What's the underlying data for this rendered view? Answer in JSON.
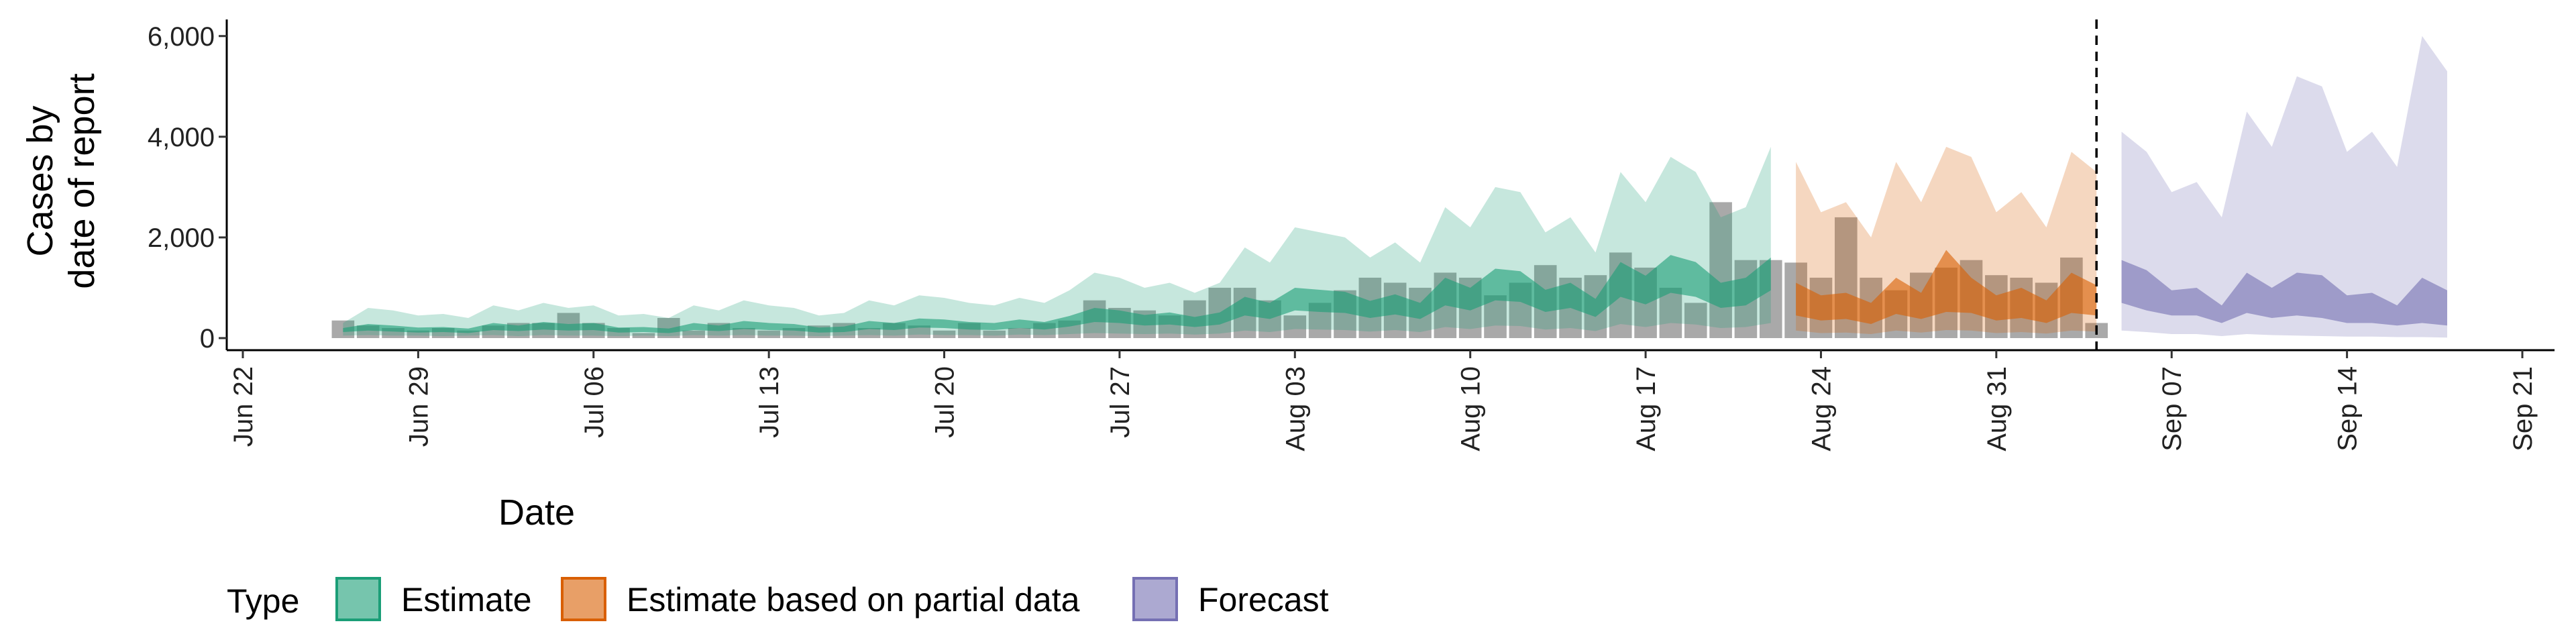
{
  "chart_data": {
    "type": "band",
    "x_label": "Date",
    "y_label": [
      "Cases by",
      "date of report"
    ],
    "legend_title": "Type",
    "xlim": [
      "Jun 22",
      "Sep 21"
    ],
    "xticks": [
      "Jun 22",
      "Jun 29",
      "Jul 06",
      "Jul 13",
      "Jul 20",
      "Jul 27",
      "Aug 03",
      "Aug 10",
      "Aug 17",
      "Aug 24",
      "Aug 31",
      "Sep 07",
      "Sep 14",
      "Sep 21"
    ],
    "ylim": [
      -240,
      6330
    ],
    "yticks": [
      0,
      {
        "value": 2000,
        "label": "2,000"
      },
      {
        "value": 4000,
        "label": "4,000"
      },
      {
        "value": 6000,
        "label": "6,000"
      }
    ],
    "vline": "Sep 04",
    "reported": {
      "color": "#8c8c8c",
      "x": [
        "Jun 26",
        "Jun 27",
        "Jun 28",
        "Jun 29",
        "Jun 30",
        "Jul 01",
        "Jul 02",
        "Jul 03",
        "Jul 04",
        "Jul 05",
        "Jul 06",
        "Jul 07",
        "Jul 08",
        "Jul 09",
        "Jul 10",
        "Jul 11",
        "Jul 12",
        "Jul 13",
        "Jul 14",
        "Jul 15",
        "Jul 16",
        "Jul 17",
        "Jul 18",
        "Jul 19",
        "Jul 20",
        "Jul 21",
        "Jul 22",
        "Jul 23",
        "Jul 24",
        "Jul 25",
        "Jul 26",
        "Jul 27",
        "Jul 28",
        "Jul 29",
        "Jul 30",
        "Jul 31",
        "Aug 01",
        "Aug 02",
        "Aug 03",
        "Aug 04",
        "Aug 05",
        "Aug 06",
        "Aug 07",
        "Aug 08",
        "Aug 09",
        "Aug 10",
        "Aug 11",
        "Aug 12",
        "Aug 13",
        "Aug 14",
        "Aug 15",
        "Aug 16",
        "Aug 17",
        "Aug 18",
        "Aug 19",
        "Aug 20",
        "Aug 21",
        "Aug 22",
        "Aug 23",
        "Aug 24",
        "Aug 25",
        "Aug 26",
        "Aug 27",
        "Aug 28",
        "Aug 29",
        "Aug 30",
        "Aug 31",
        "Sep 01",
        "Sep 02",
        "Sep 03",
        "Sep 04"
      ],
      "values": [
        350,
        250,
        200,
        150,
        200,
        150,
        250,
        300,
        300,
        500,
        300,
        200,
        100,
        400,
        150,
        300,
        200,
        150,
        200,
        250,
        300,
        200,
        300,
        250,
        150,
        300,
        150,
        200,
        300,
        350,
        750,
        600,
        550,
        450,
        750,
        1000,
        1000,
        750,
        450,
        700,
        950,
        1200,
        1100,
        1000,
        1300,
        1200,
        850,
        1100,
        1450,
        1200,
        1250,
        1700,
        1400,
        1000,
        700,
        2700,
        1550,
        1550,
        1500,
        1200,
        2400,
        1200,
        950,
        1300,
        1400,
        1550,
        1250,
        1200,
        1100,
        1600,
        300
      ]
    },
    "series": [
      {
        "name": "Estimate",
        "color": "#1b9e77",
        "x": [
          "Jun 26",
          "Jun 27",
          "Jun 28",
          "Jun 29",
          "Jun 30",
          "Jul 01",
          "Jul 02",
          "Jul 03",
          "Jul 04",
          "Jul 05",
          "Jul 06",
          "Jul 07",
          "Jul 08",
          "Jul 09",
          "Jul 10",
          "Jul 11",
          "Jul 12",
          "Jul 13",
          "Jul 14",
          "Jul 15",
          "Jul 16",
          "Jul 17",
          "Jul 18",
          "Jul 19",
          "Jul 20",
          "Jul 21",
          "Jul 22",
          "Jul 23",
          "Jul 24",
          "Jul 25",
          "Jul 26",
          "Jul 27",
          "Jul 28",
          "Jul 29",
          "Jul 30",
          "Jul 31",
          "Aug 01",
          "Aug 02",
          "Aug 03",
          "Aug 04",
          "Aug 05",
          "Aug 06",
          "Aug 07",
          "Aug 08",
          "Aug 09",
          "Aug 10",
          "Aug 11",
          "Aug 12",
          "Aug 13",
          "Aug 14",
          "Aug 15",
          "Aug 16",
          "Aug 17",
          "Aug 18",
          "Aug 19",
          "Aug 20",
          "Aug 21",
          "Aug 22"
        ],
        "lower_90": [
          50,
          60,
          50,
          50,
          40,
          50,
          60,
          40,
          60,
          50,
          50,
          40,
          50,
          40,
          60,
          50,
          60,
          50,
          50,
          40,
          50,
          60,
          50,
          70,
          60,
          60,
          50,
          70,
          60,
          80,
          100,
          90,
          80,
          90,
          70,
          90,
          150,
          120,
          180,
          170,
          160,
          130,
          160,
          120,
          220,
          180,
          250,
          240,
          170,
          200,
          140,
          280,
          220,
          300,
          270,
          200,
          220,
          300
        ],
        "upper_90": [
          300,
          600,
          550,
          450,
          480,
          400,
          650,
          550,
          700,
          600,
          650,
          450,
          480,
          400,
          650,
          550,
          750,
          650,
          600,
          450,
          500,
          750,
          650,
          850,
          800,
          700,
          650,
          800,
          700,
          950,
          1300,
          1200,
          1000,
          1100,
          900,
          1100,
          1800,
          1500,
          2200,
          2100,
          2000,
          1600,
          1900,
          1500,
          2600,
          2200,
          3000,
          2900,
          2100,
          2400,
          1700,
          3300,
          2700,
          3600,
          3300,
          2400,
          2600,
          3800
        ],
        "lower_50": [
          120,
          150,
          130,
          110,
          120,
          100,
          160,
          140,
          170,
          150,
          160,
          110,
          120,
          100,
          160,
          140,
          180,
          160,
          150,
          110,
          120,
          180,
          160,
          210,
          200,
          170,
          160,
          200,
          170,
          230,
          320,
          300,
          250,
          270,
          220,
          270,
          450,
          380,
          550,
          520,
          500,
          400,
          470,
          380,
          650,
          550,
          750,
          720,
          520,
          600,
          420,
          820,
          670,
          900,
          820,
          600,
          650,
          950
        ],
        "upper_50": [
          200,
          280,
          250,
          210,
          220,
          190,
          300,
          250,
          320,
          280,
          300,
          210,
          220,
          190,
          300,
          250,
          340,
          300,
          280,
          210,
          230,
          340,
          300,
          390,
          370,
          320,
          300,
          370,
          320,
          440,
          600,
          550,
          460,
          510,
          420,
          510,
          820,
          700,
          1000,
          960,
          920,
          740,
          870,
          700,
          1200,
          1000,
          1380,
          1330,
          960,
          1100,
          780,
          1510,
          1240,
          1650,
          1510,
          1100,
          1200,
          1600
        ]
      },
      {
        "name": "Estimate based on partial data",
        "color": "#d95f02",
        "x": [
          "Aug 23",
          "Aug 24",
          "Aug 25",
          "Aug 26",
          "Aug 27",
          "Aug 28",
          "Aug 29",
          "Aug 30",
          "Aug 31",
          "Sep 01",
          "Sep 02",
          "Sep 03",
          "Sep 04"
        ],
        "lower_90": [
          150,
          100,
          110,
          80,
          150,
          110,
          160,
          150,
          100,
          120,
          90,
          150,
          130
        ],
        "upper_90": [
          3500,
          2500,
          2700,
          2000,
          3500,
          2700,
          3800,
          3600,
          2500,
          2900,
          2200,
          3700,
          3300
        ],
        "lower_50": [
          450,
          350,
          380,
          280,
          480,
          380,
          520,
          500,
          350,
          400,
          300,
          500,
          450
        ],
        "upper_50": [
          1100,
          850,
          900,
          700,
          1200,
          900,
          1750,
          1200,
          850,
          1000,
          750,
          1300,
          1050
        ]
      },
      {
        "name": "Forecast",
        "color": "#7570b3",
        "x": [
          "Sep 05",
          "Sep 06",
          "Sep 07",
          "Sep 08",
          "Sep 09",
          "Sep 10",
          "Sep 11",
          "Sep 12",
          "Sep 13",
          "Sep 14",
          "Sep 15",
          "Sep 16",
          "Sep 17",
          "Sep 18"
        ],
        "lower_90": [
          150,
          120,
          80,
          80,
          40,
          80,
          60,
          50,
          40,
          30,
          30,
          20,
          20,
          10
        ],
        "upper_90": [
          4100,
          3700,
          2900,
          3100,
          2400,
          4500,
          3800,
          5200,
          5000,
          3700,
          4100,
          3400,
          6000,
          5300
        ],
        "lower_50": [
          700,
          550,
          450,
          450,
          300,
          500,
          400,
          450,
          400,
          300,
          300,
          250,
          300,
          250
        ],
        "upper_50": [
          1550,
          1350,
          950,
          1000,
          650,
          1300,
          1000,
          1300,
          1250,
          850,
          900,
          650,
          1200,
          950
        ]
      }
    ]
  }
}
